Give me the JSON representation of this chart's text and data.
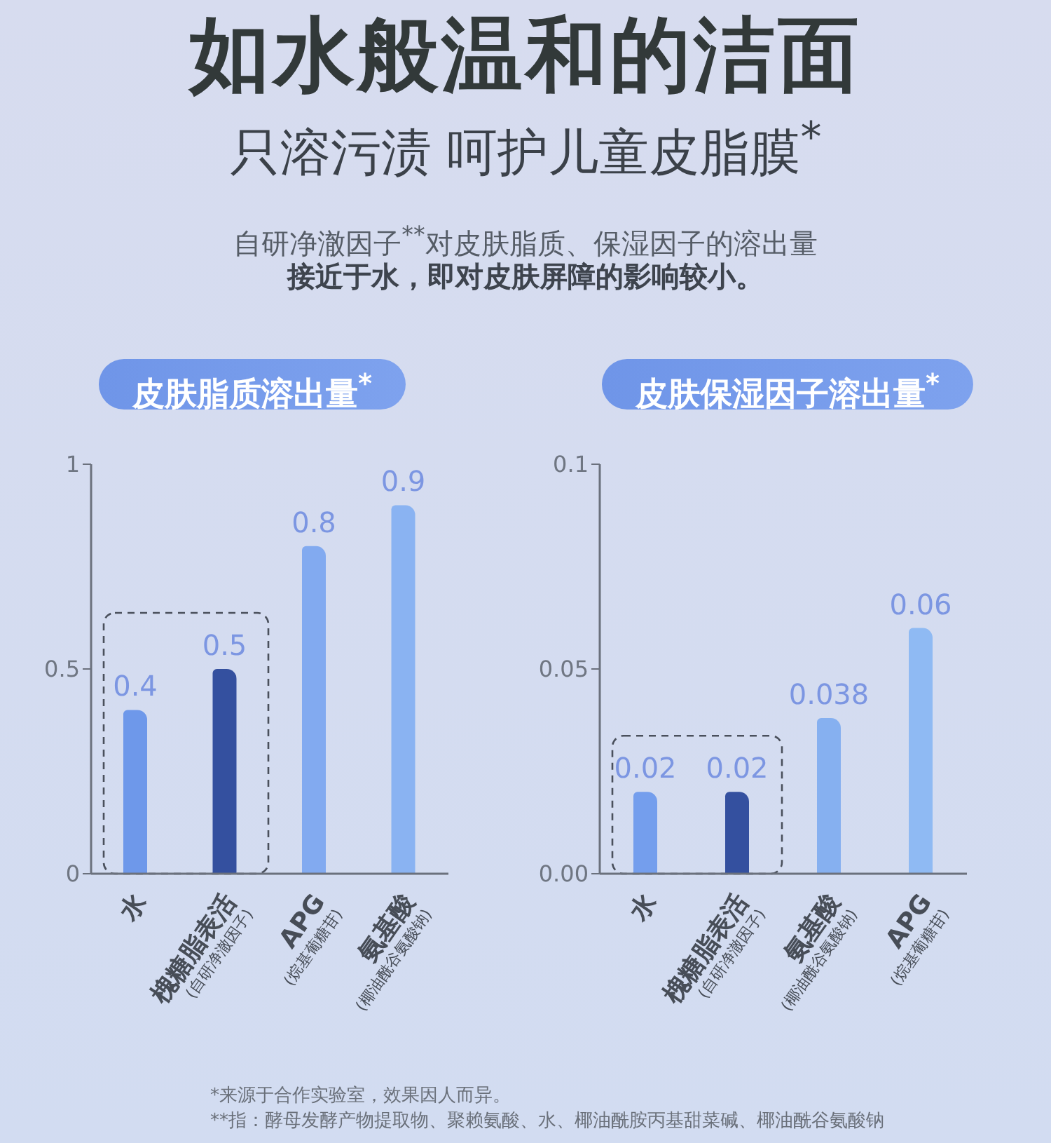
{
  "chart_data": [
    {
      "type": "bar",
      "title": "皮肤脂质溶出量$^{*}$",
      "categories": [
        "水",
        "槐糖脂表活\n$_{(自研净澈因子)}$",
        "APG\n$_{(烷基葡糖苷)}$",
        "氨基酸\n$_{(椰油酰谷氨酸钠)}$"
      ],
      "values": [
        0.4,
        0.5,
        0.8,
        0.9
      ],
      "colors": [
        "#6e98ea",
        "#34509f",
        "#82aaf0",
        "#8ab3f2"
      ],
      "ylim": [
        0,
        1
      ],
      "yticks": [
        0,
        0.5,
        1
      ],
      "data_labels": true,
      "annotations": [
        "如水般温和的洁面",
        "只溶污渍 呵护儿童皮脂膜$^{*}$",
        "自研净澈因子$^{**}$对皮肤脂质、保湿因子的溶出量",
        "接近于水，即对皮肤屏障的影响较小。"
      ]
    },
    {
      "type": "bar",
      "title": "皮肤保湿因子溶出量$^{*}$",
      "categories": [
        "水",
        "槐糖脂表活\n$_{(自研净澈因子)}$",
        "氨基酸\n$_{(椰油酰谷氨酸钠)}$",
        "APG\n$_{(烷基葡糖苷)}$"
      ],
      "values": [
        0.02,
        0.02,
        0.038,
        0.06
      ],
      "colors": [
        "#749eed",
        "#34509f",
        "#86b0f0",
        "#8fbaf3"
      ],
      "ylim": [
        0,
        0.1
      ],
      "yticks": [
        {
          "value": 0,
          "label": "0.00"
        },
        0.05,
        0.1
      ],
      "data_labels": true,
      "annotations": [
        "*来源于合作实验室，效果因人而异。",
        "**指：酵母发酵产物提取物、聚赖氨酸、水、椰油酰胺丙基甜菜碱、椰油酰谷氨酸钠"
      ]
    }
  ]
}
